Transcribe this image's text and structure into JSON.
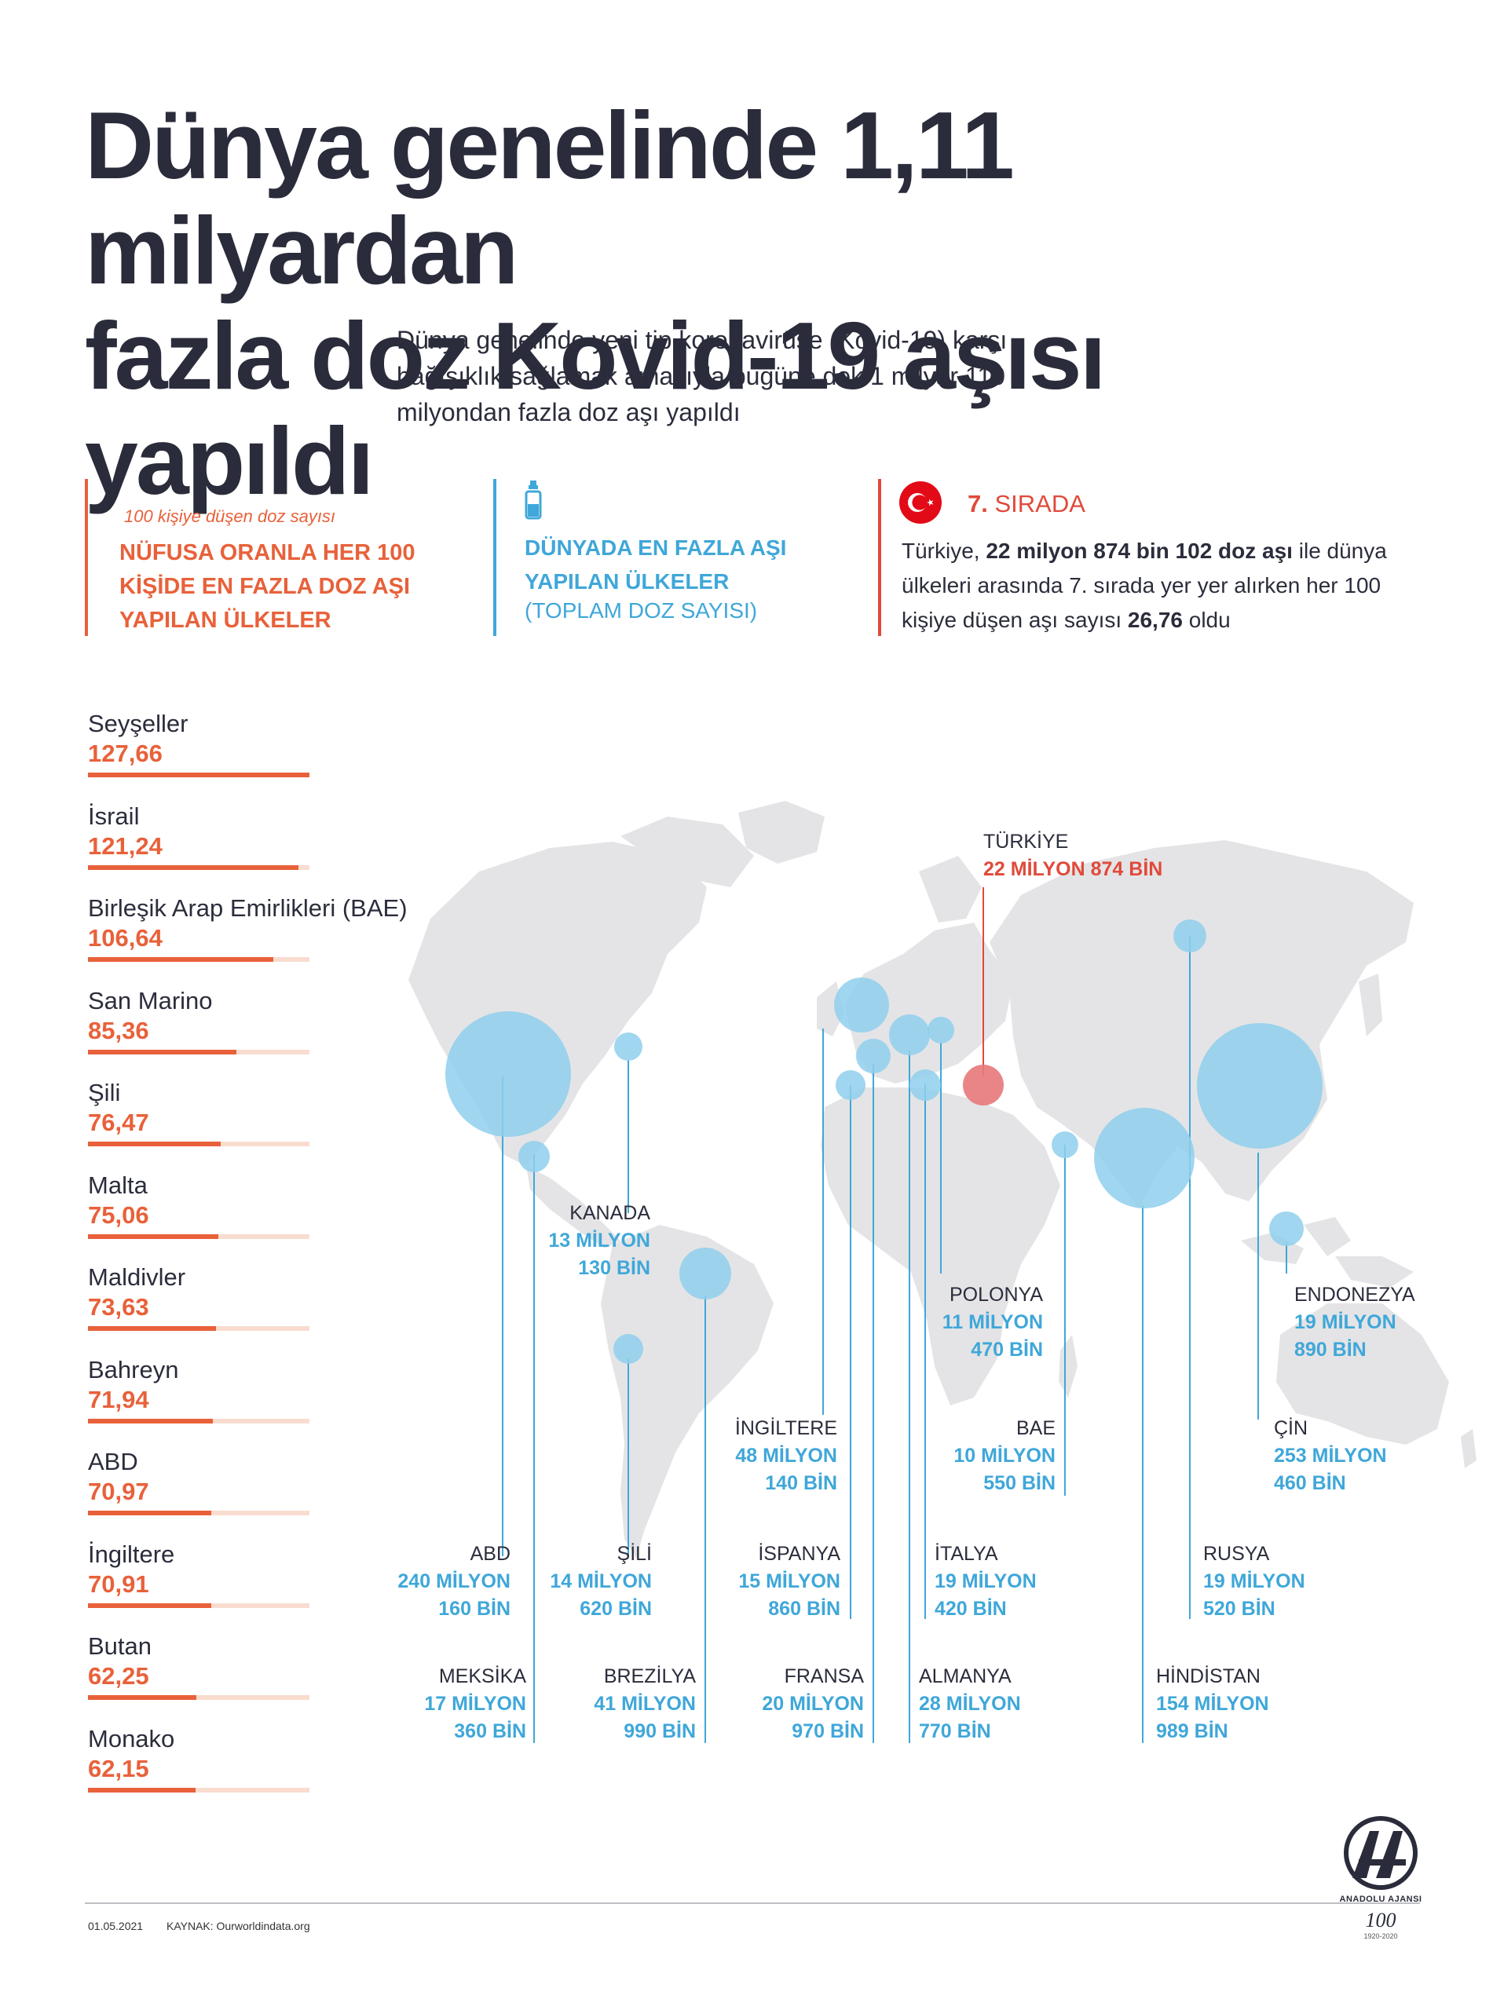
{
  "title": [
    "Dünya genelinde 1,11 milyardan",
    "fazla doz Kovid-19 aşısı",
    "yapıldı"
  ],
  "subtitle": "Dünya genelinde yeni tip koronavirüse (Kovid-19) karşı bağışıklık sağlamak amacıyla bugüne dek 1 milyar 110 milyondan fazla doz aşı yapıldı",
  "per_capita": {
    "note": "100 kişiye düşen doz sayısı",
    "heading": "NÜFUSA ORANLA HER 100 KİŞİDE EN FAZLA DOZ AŞI YAPILAN ÜLKELER",
    "items": [
      {
        "name": "Seyşeller",
        "value": "127,66",
        "num": 127.66
      },
      {
        "name": "İsrail",
        "value": "121,24",
        "num": 121.24
      },
      {
        "name": "Birleşik Arap Emirlikleri (BAE)",
        "value": "106,64",
        "num": 106.64
      },
      {
        "name": "San Marino",
        "value": "85,36",
        "num": 85.36
      },
      {
        "name": "Şili",
        "value": "76,47",
        "num": 76.47
      },
      {
        "name": "Malta",
        "value": "75,06",
        "num": 75.06
      },
      {
        "name": "Maldivler",
        "value": "73,63",
        "num": 73.63
      },
      {
        "name": "Bahreyn",
        "value": "71,94",
        "num": 71.94
      },
      {
        "name": "ABD",
        "value": "70,97",
        "num": 70.97
      },
      {
        "name": "İngiltere",
        "value": "70,91",
        "num": 70.91
      },
      {
        "name": "Butan",
        "value": "62,25",
        "num": 62.25
      },
      {
        "name": "Monako",
        "value": "62,15",
        "num": 62.15
      }
    ]
  },
  "totals": {
    "heading": "DÜNYADA EN FAZLA AŞI YAPILAN ÜLKELER",
    "sub": "(TOPLAM DOZ SAYISI)",
    "items": [
      {
        "country": "TÜRKİYE",
        "v1": "22 MİLYON 874 BİN",
        "v2": ""
      },
      {
        "country": "KANADA",
        "v1": "13 MİLYON",
        "v2": "130 BİN"
      },
      {
        "country": "POLONYA",
        "v1": "11 MİLYON",
        "v2": "470 BİN"
      },
      {
        "country": "ENDONEZYA",
        "v1": "19 MİLYON",
        "v2": "890 BİN"
      },
      {
        "country": "İNGİLTERE",
        "v1": "48 MİLYON",
        "v2": "140 BİN"
      },
      {
        "country": "BAE",
        "v1": "10 MİLYON",
        "v2": "550 BİN"
      },
      {
        "country": "ÇİN",
        "v1": "253 MİLYON",
        "v2": "460 BİN"
      },
      {
        "country": "ABD",
        "v1": "240 MİLYON",
        "v2": "160 BİN"
      },
      {
        "country": "ŞİLİ",
        "v1": "14 MİLYON",
        "v2": "620 BİN"
      },
      {
        "country": "İSPANYA",
        "v1": "15 MİLYON",
        "v2": "860 BİN"
      },
      {
        "country": "İTALYA",
        "v1": "19 MİLYON",
        "v2": "420 BİN"
      },
      {
        "country": "RUSYA",
        "v1": "19 MİLYON",
        "v2": "520 BİN"
      },
      {
        "country": "MEKSİKA",
        "v1": "17 MİLYON",
        "v2": "360 BİN"
      },
      {
        "country": "BREZİLYA",
        "v1": "41 MİLYON",
        "v2": "990 BİN"
      },
      {
        "country": "FRANSA",
        "v1": "20 MİLYON",
        "v2": "970 BİN"
      },
      {
        "country": "ALMANYA",
        "v1": "28 MİLYON",
        "v2": "770 BİN"
      },
      {
        "country": "HİNDİSTAN",
        "v1": "154 MİLYON",
        "v2": "989 BİN"
      }
    ]
  },
  "turkey": {
    "rank_num": "7.",
    "rank_word": "SIRADA",
    "text_a": "Türkiye, ",
    "text_b": "22 milyon 874 bin 102 doz aşı",
    "text_c": " ile dünya ülkeleri arasında 7. sırada yer yer alırken her 100 kişiye düşen aşı sayısı ",
    "text_d": "26,76",
    "text_e": " oldu"
  },
  "footer": {
    "date": "01.05.2021",
    "source": "KAYNAK: Ourworldindata.org",
    "logo_text": "ANADOLU AJANSI",
    "logo_year": "100",
    "logo_years": "1920-2020"
  },
  "colors": {
    "title": "#2a2c3b",
    "orange": "#e8613a",
    "blue": "#3fa7d9",
    "red": "#e04a3a",
    "map": "#e4e4e6",
    "bubble": "#8fcfec"
  },
  "icons": [
    "turkey-flag-icon",
    "vaccine-vial-icon",
    "aa-logo-icon"
  ]
}
